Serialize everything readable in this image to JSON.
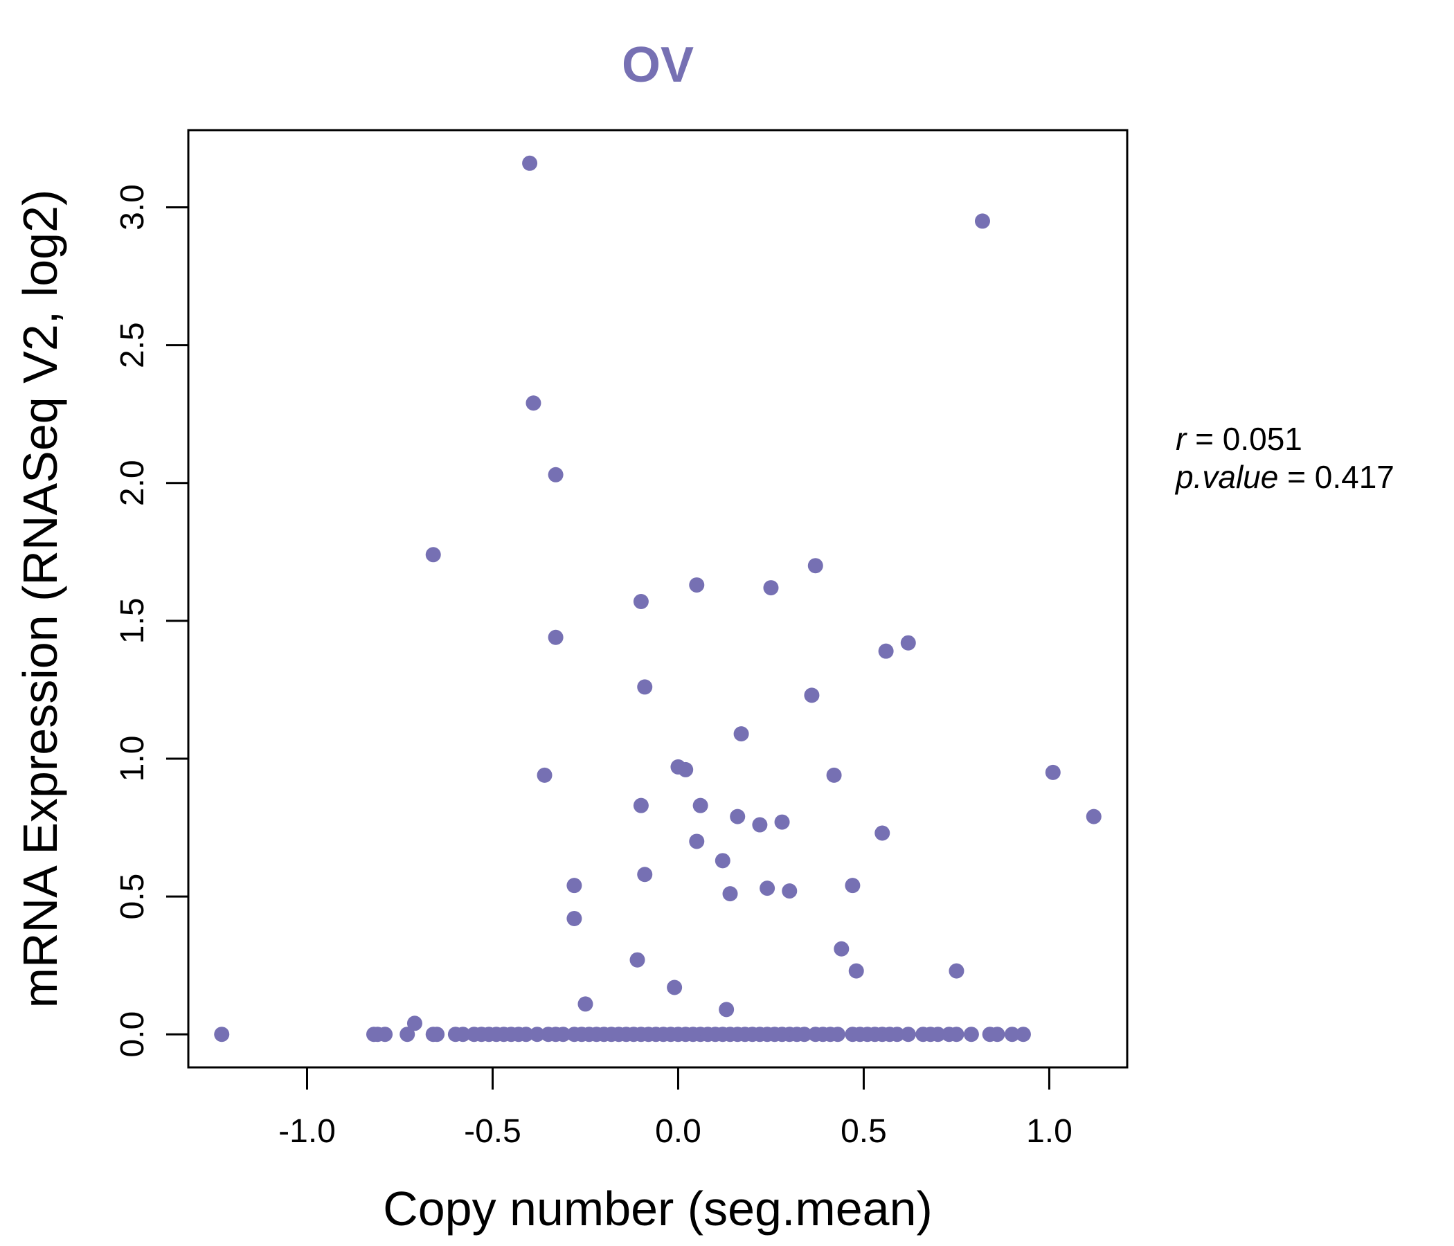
{
  "colors": {
    "point": "#7670B3",
    "title": "#7670B3",
    "axis": "#000000"
  },
  "chart_data": {
    "type": "scatter",
    "title": "OV",
    "xlabel": "Copy number (seg.mean)",
    "ylabel": "mRNA Expression (RNASeq V2, log2)",
    "xlim": [
      -1.32,
      1.21
    ],
    "ylim": [
      -0.12,
      3.28
    ],
    "xticks": [
      -1.0,
      -0.5,
      0.0,
      0.5,
      1.0
    ],
    "xtick_labels": [
      "-1.0",
      "-0.5",
      "0.0",
      "0.5",
      "1.0"
    ],
    "yticks": [
      0.0,
      0.5,
      1.0,
      1.5,
      2.0,
      2.5,
      3.0
    ],
    "ytick_labels": [
      "0.0",
      "0.5",
      "1.0",
      "1.5",
      "2.0",
      "2.5",
      "3.0"
    ],
    "grid": false,
    "stats": {
      "r_label": "r",
      "r_value": "0.051",
      "p_label": "p.value",
      "p_value": "0.417"
    },
    "points": [
      [
        -0.4,
        3.16
      ],
      [
        0.82,
        2.95
      ],
      [
        -0.39,
        2.29
      ],
      [
        -0.33,
        2.03
      ],
      [
        -0.66,
        1.74
      ],
      [
        0.37,
        1.7
      ],
      [
        0.05,
        1.63
      ],
      [
        0.25,
        1.62
      ],
      [
        -0.1,
        1.57
      ],
      [
        -0.33,
        1.44
      ],
      [
        0.62,
        1.42
      ],
      [
        0.56,
        1.39
      ],
      [
        -0.09,
        1.26
      ],
      [
        0.36,
        1.23
      ],
      [
        0.17,
        1.09
      ],
      [
        -0.36,
        0.94
      ],
      [
        0.42,
        0.94
      ],
      [
        1.01,
        0.95
      ],
      [
        0.0,
        0.97
      ],
      [
        0.02,
        0.96
      ],
      [
        -0.1,
        0.83
      ],
      [
        0.06,
        0.83
      ],
      [
        0.16,
        0.79
      ],
      [
        0.22,
        0.76
      ],
      [
        0.28,
        0.77
      ],
      [
        1.12,
        0.79
      ],
      [
        0.55,
        0.73
      ],
      [
        0.05,
        0.7
      ],
      [
        0.12,
        0.63
      ],
      [
        -0.09,
        0.58
      ],
      [
        -0.28,
        0.54
      ],
      [
        0.24,
        0.53
      ],
      [
        0.3,
        0.52
      ],
      [
        0.47,
        0.54
      ],
      [
        0.14,
        0.51
      ],
      [
        -0.28,
        0.42
      ],
      [
        0.44,
        0.31
      ],
      [
        -0.11,
        0.27
      ],
      [
        0.48,
        0.23
      ],
      [
        0.75,
        0.23
      ],
      [
        -0.01,
        0.17
      ],
      [
        -0.25,
        0.11
      ],
      [
        0.13,
        0.09
      ],
      [
        -0.71,
        0.04
      ],
      [
        -1.23,
        0.0
      ],
      [
        -0.82,
        0.0
      ],
      [
        -0.81,
        0.0
      ],
      [
        -0.79,
        0.0
      ],
      [
        -0.73,
        0.0
      ],
      [
        -0.66,
        0.0
      ],
      [
        -0.65,
        0.0
      ],
      [
        -0.6,
        0.0
      ],
      [
        -0.58,
        0.0
      ],
      [
        -0.55,
        0.0
      ],
      [
        -0.53,
        0.0
      ],
      [
        -0.51,
        0.0
      ],
      [
        -0.49,
        0.0
      ],
      [
        -0.47,
        0.0
      ],
      [
        -0.45,
        0.0
      ],
      [
        -0.43,
        0.0
      ],
      [
        -0.41,
        0.0
      ],
      [
        -0.38,
        0.0
      ],
      [
        -0.35,
        0.0
      ],
      [
        -0.33,
        0.0
      ],
      [
        -0.31,
        0.0
      ],
      [
        -0.28,
        0.0
      ],
      [
        -0.26,
        0.0
      ],
      [
        -0.24,
        0.0
      ],
      [
        -0.22,
        0.0
      ],
      [
        -0.2,
        0.0
      ],
      [
        -0.18,
        0.0
      ],
      [
        -0.16,
        0.0
      ],
      [
        -0.14,
        0.0
      ],
      [
        -0.12,
        0.0
      ],
      [
        -0.1,
        0.0
      ],
      [
        -0.08,
        0.0
      ],
      [
        -0.06,
        0.0
      ],
      [
        -0.04,
        0.0
      ],
      [
        -0.02,
        0.0
      ],
      [
        0.0,
        0.0
      ],
      [
        0.02,
        0.0
      ],
      [
        0.04,
        0.0
      ],
      [
        0.06,
        0.0
      ],
      [
        0.08,
        0.0
      ],
      [
        0.1,
        0.0
      ],
      [
        0.12,
        0.0
      ],
      [
        0.14,
        0.0
      ],
      [
        0.16,
        0.0
      ],
      [
        0.18,
        0.0
      ],
      [
        0.2,
        0.0
      ],
      [
        0.22,
        0.0
      ],
      [
        0.24,
        0.0
      ],
      [
        0.26,
        0.0
      ],
      [
        0.28,
        0.0
      ],
      [
        0.3,
        0.0
      ],
      [
        0.32,
        0.0
      ],
      [
        0.34,
        0.0
      ],
      [
        0.37,
        0.0
      ],
      [
        0.39,
        0.0
      ],
      [
        0.41,
        0.0
      ],
      [
        0.43,
        0.0
      ],
      [
        0.47,
        0.0
      ],
      [
        0.49,
        0.0
      ],
      [
        0.51,
        0.0
      ],
      [
        0.53,
        0.0
      ],
      [
        0.55,
        0.0
      ],
      [
        0.57,
        0.0
      ],
      [
        0.59,
        0.0
      ],
      [
        0.62,
        0.0
      ],
      [
        0.66,
        0.0
      ],
      [
        0.68,
        0.0
      ],
      [
        0.7,
        0.0
      ],
      [
        0.73,
        0.0
      ],
      [
        0.75,
        0.0
      ],
      [
        0.79,
        0.0
      ],
      [
        0.84,
        0.0
      ],
      [
        0.86,
        0.0
      ],
      [
        0.9,
        0.0
      ],
      [
        0.93,
        0.0
      ]
    ]
  }
}
